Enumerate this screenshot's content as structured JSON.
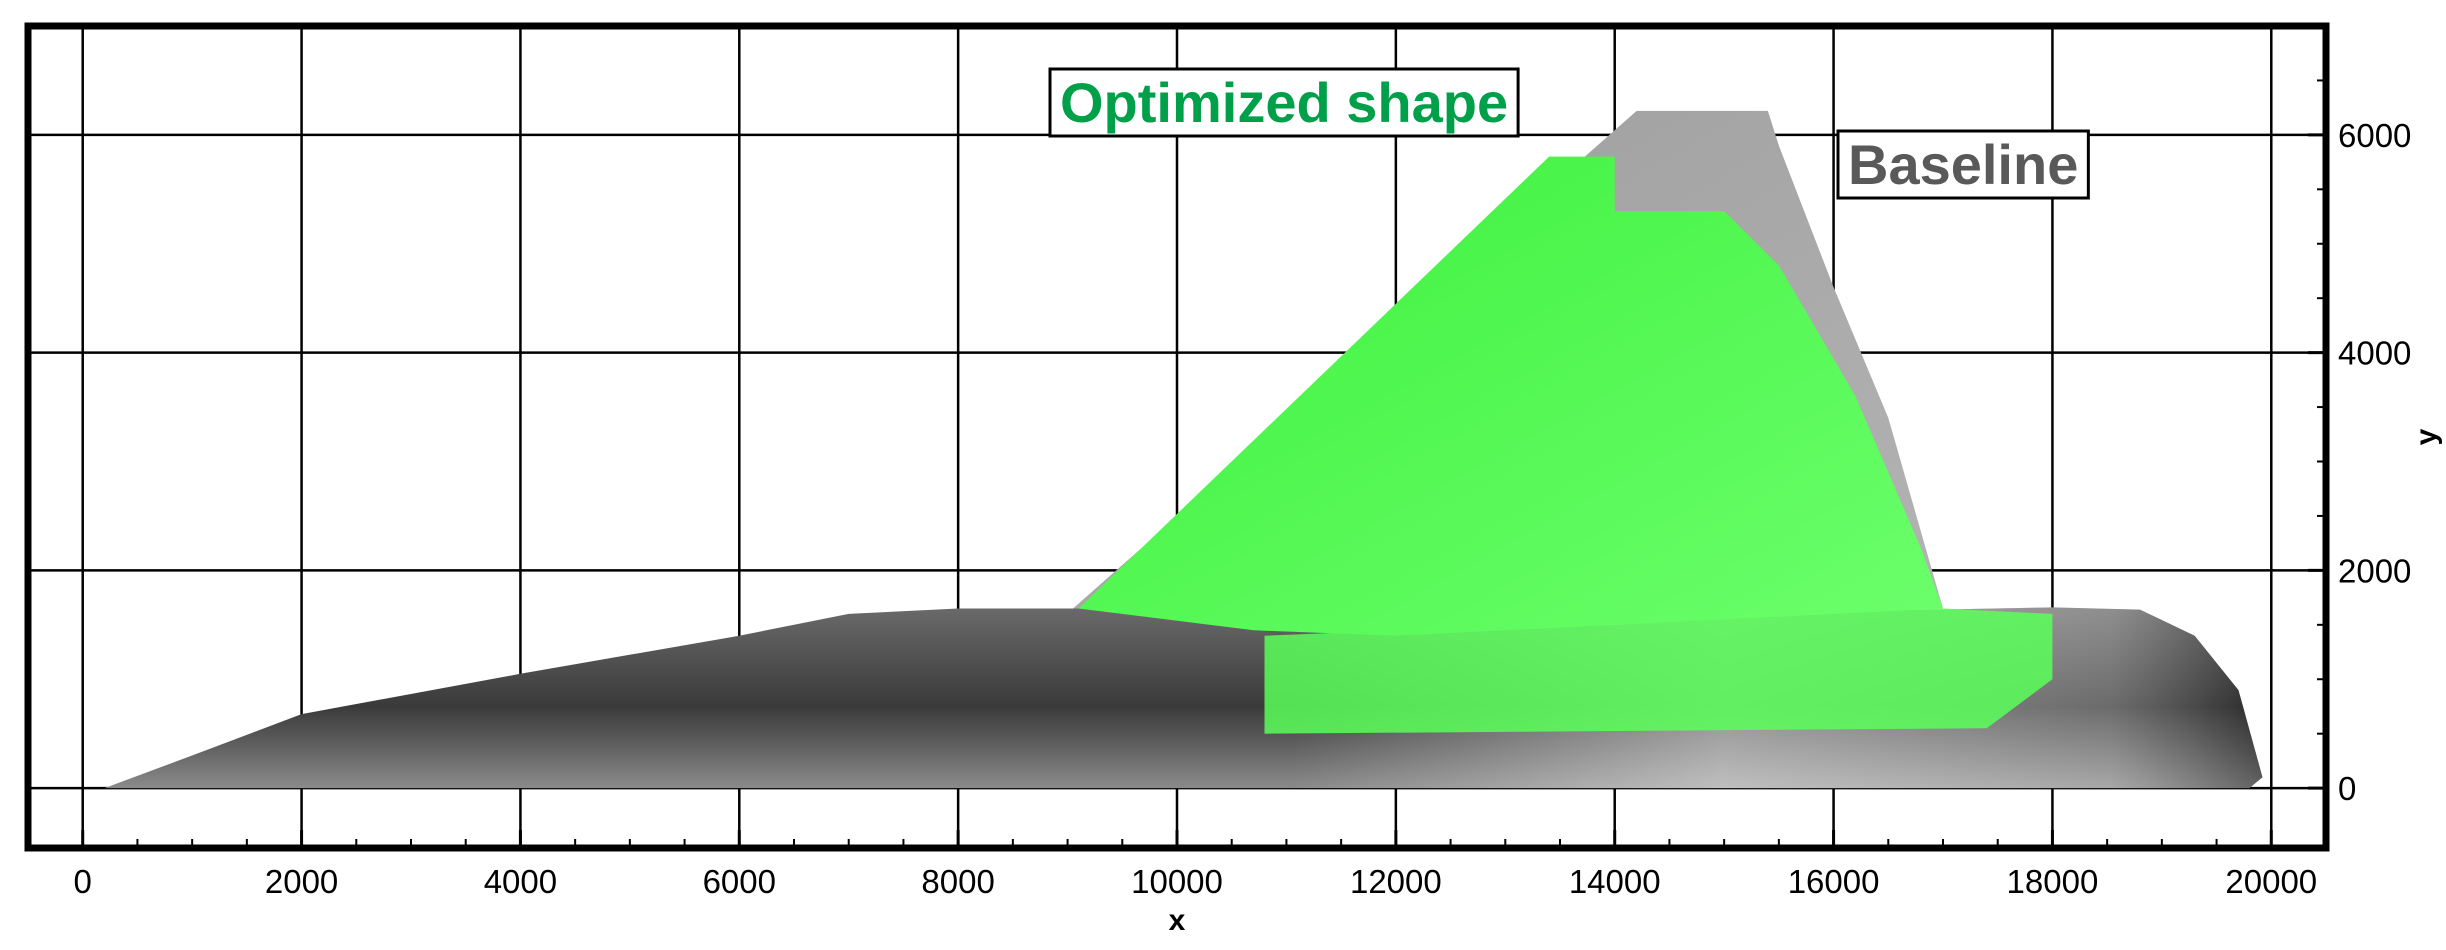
{
  "chart_data": {
    "type": "area",
    "xlabel": "x",
    "ylabel": "y",
    "xlim": [
      -500,
      20500
    ],
    "ylim": [
      -550,
      7000
    ],
    "xticks": [
      0,
      2000,
      4000,
      6000,
      8000,
      10000,
      12000,
      14000,
      16000,
      18000,
      20000
    ],
    "xtick_labels": [
      "0",
      "2000",
      "4000",
      "6000",
      "8000",
      "10000",
      "12000",
      "14000",
      "16000",
      "18000",
      "20000"
    ],
    "yticks": [
      0,
      2000,
      4000,
      6000
    ],
    "ytick_labels": [
      "0",
      "2000",
      "4000",
      "6000"
    ],
    "grid": true,
    "series": [
      {
        "name": "Baseline",
        "color": "#a6a6a6",
        "label_color": "#595959",
        "regions": {
          "fuselage": [
            [
              200,
              0
            ],
            [
              1000,
              300
            ],
            [
              2000,
              680
            ],
            [
              4000,
              1050
            ],
            [
              6000,
              1400
            ],
            [
              7000,
              1600
            ],
            [
              8000,
              1650
            ],
            [
              10000,
              1650
            ],
            [
              12000,
              1640
            ],
            [
              14000,
              1620
            ],
            [
              16000,
              1620
            ],
            [
              18000,
              1660
            ],
            [
              18800,
              1640
            ],
            [
              19300,
              1400
            ],
            [
              19700,
              900
            ],
            [
              19920,
              100
            ],
            [
              19800,
              0
            ]
          ],
          "wing": [
            [
              9050,
              1650
            ],
            [
              14200,
              6220
            ],
            [
              15400,
              6220
            ],
            [
              15500,
              5900
            ],
            [
              16000,
              4600
            ],
            [
              16500,
              3400
            ],
            [
              17000,
              1650
            ],
            [
              12000,
              1400
            ],
            [
              10700,
              1450
            ]
          ]
        }
      },
      {
        "name": "Optimized shape",
        "color": "#59ff59",
        "label_color": "#00a04a",
        "regions": {
          "wing": [
            [
              9100,
              1650
            ],
            [
              13400,
              5800
            ],
            [
              14000,
              5800
            ],
            [
              14000,
              5300
            ],
            [
              15000,
              5300
            ],
            [
              15500,
              4800
            ],
            [
              16200,
              3600
            ],
            [
              16800,
              2200
            ],
            [
              17000,
              1650
            ],
            [
              12000,
              1400
            ],
            [
              10700,
              1450
            ]
          ],
          "body_band": [
            [
              10800,
              520
            ],
            [
              10800,
              1400
            ],
            [
              17000,
              1650
            ],
            [
              18000,
              1600
            ],
            [
              18000,
              1000
            ],
            [
              17400,
              550
            ],
            [
              10800,
              500
            ]
          ]
        }
      }
    ]
  }
}
